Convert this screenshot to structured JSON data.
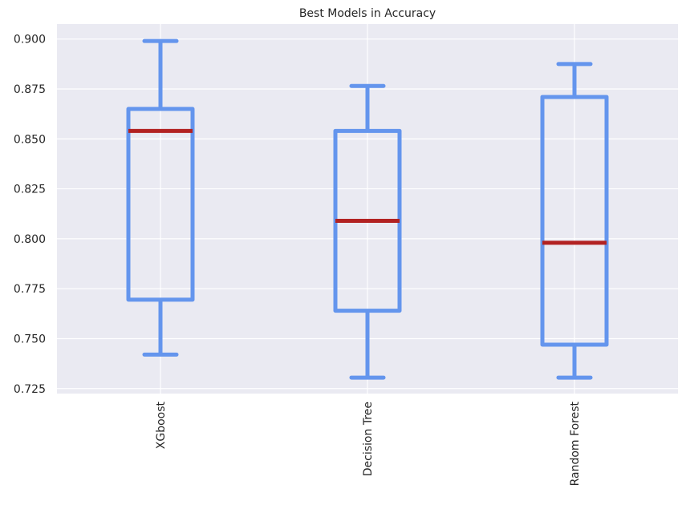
{
  "chart_data": {
    "type": "boxplot",
    "title": "Best Models in Accuracy",
    "xlabel": "",
    "ylabel": "",
    "ylim": [
      0.7225,
      0.9075
    ],
    "yticks": [
      0.725,
      0.75,
      0.775,
      0.8,
      0.825,
      0.85,
      0.875,
      0.9
    ],
    "ytick_labels": [
      "0.725",
      "0.750",
      "0.775",
      "0.800",
      "0.825",
      "0.850",
      "0.875",
      "0.900"
    ],
    "grid": true,
    "categories": [
      "XGboost",
      "Decision Tree",
      "Random Forest"
    ],
    "boxes": [
      {
        "whislo": 0.742,
        "q1": 0.7695,
        "med": 0.854,
        "q3": 0.865,
        "whishi": 0.899
      },
      {
        "whislo": 0.7305,
        "q1": 0.764,
        "med": 0.809,
        "q3": 0.854,
        "whishi": 0.8765
      },
      {
        "whislo": 0.7305,
        "q1": 0.747,
        "med": 0.798,
        "q3": 0.871,
        "whishi": 0.8875
      }
    ],
    "colors": {
      "background": "#eaeaf2",
      "grid": "#ffffff",
      "box": "#6495ed",
      "median": "#b22222",
      "text": "#262626"
    }
  }
}
